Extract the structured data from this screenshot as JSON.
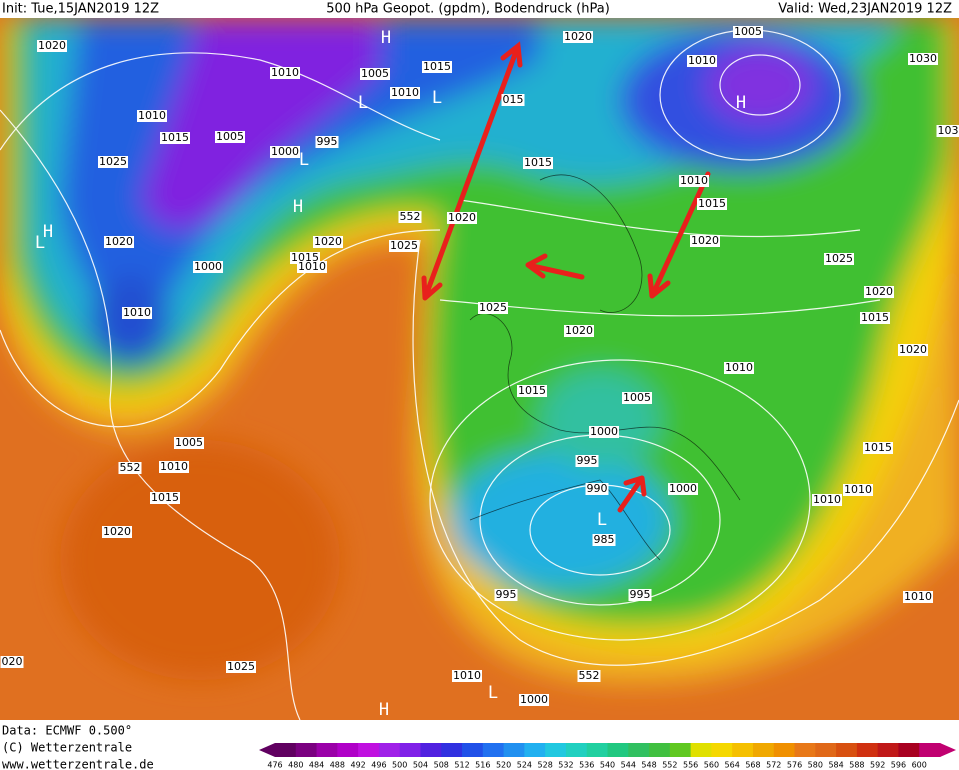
{
  "header": {
    "init": "Init: Tue,15JAN2019 12Z",
    "title": "500 hPa Geopot. (gpdm), Bodendruck (hPa)",
    "valid": "Valid: Wed,23JAN2019 12Z"
  },
  "footer": {
    "data": "Data: ECMWF   0.500°",
    "copyright": "(C) Wetterzentrale",
    "url": "www.wetterzentrale.de"
  },
  "colorbar": {
    "labels": [
      476,
      480,
      484,
      488,
      492,
      496,
      500,
      504,
      508,
      512,
      516,
      520,
      524,
      528,
      532,
      536,
      540,
      544,
      548,
      552,
      556,
      560,
      564,
      568,
      572,
      576,
      580,
      584,
      588,
      592,
      596,
      600
    ]
  },
  "map_labels": [
    "1020",
    "1010",
    "1015",
    "1025",
    "1020",
    "1000",
    "1010",
    "1005",
    "1010",
    "1015",
    "1020",
    "1025",
    "020",
    "1010",
    "1005",
    "1000",
    "995",
    "1005",
    "1010",
    "1015",
    "1020",
    "1025",
    "1015",
    "1010",
    "1020",
    "015",
    "1020",
    "1015",
    "1010",
    "1005",
    "1030",
    "103",
    "1010",
    "1015",
    "1020",
    "1025",
    "1020",
    "1015",
    "1020",
    "1025",
    "1020",
    "1015",
    "1010",
    "1005",
    "1000",
    "995",
    "990",
    "985",
    "1000",
    "1015",
    "1010",
    "1010",
    "1010",
    "995",
    "995",
    "1010",
    "1000",
    "552",
    "552",
    "552"
  ],
  "pressure_centers": [
    "H",
    "L",
    "L",
    "H",
    "H",
    "L",
    "H",
    "L",
    "L",
    "L",
    "H"
  ]
}
